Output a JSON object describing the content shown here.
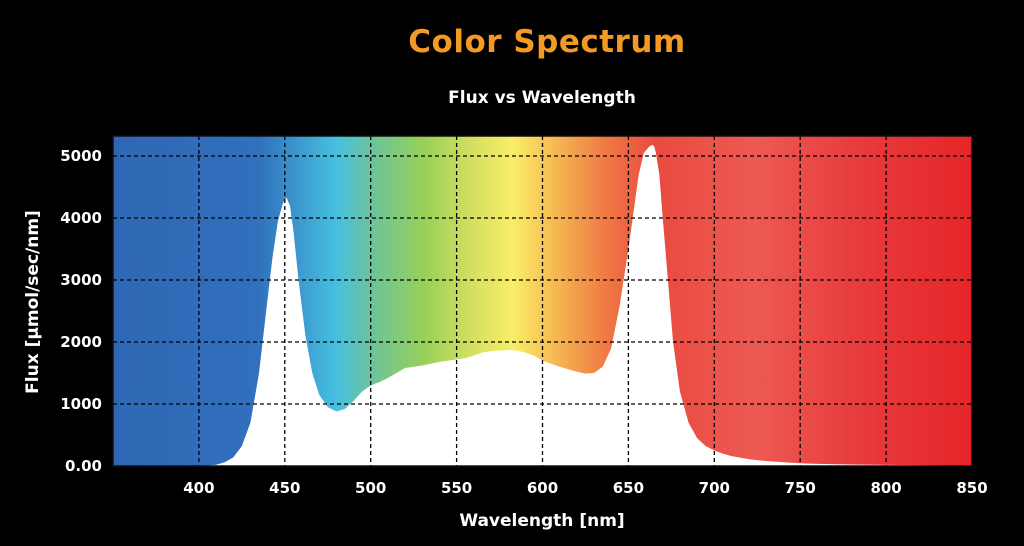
{
  "title": "Color Spectrum",
  "subtitle": "Flux vs Wavelength",
  "colors": {
    "title": "#f39a25",
    "spectrum_fill": "#ffffff",
    "grid": "#000000",
    "background": "#000000"
  },
  "chart_data": {
    "type": "area",
    "title": "Color Spectrum",
    "subtitle": "Flux vs Wavelength",
    "xlabel": "Wavelength [nm]",
    "ylabel": "Flux [μmol/sec/nm]",
    "xlim": [
      350,
      850
    ],
    "ylim": [
      0,
      5300
    ],
    "x_ticks": [
      400,
      450,
      500,
      550,
      600,
      650,
      700,
      750,
      800,
      850
    ],
    "x_tick_labels": [
      "400",
      "450",
      "500",
      "550",
      "600",
      "650",
      "700",
      "750",
      "800",
      "850"
    ],
    "y_ticks": [
      0,
      1000,
      2000,
      3000,
      4000,
      5000
    ],
    "y_tick_labels": [
      "0.00",
      "1000",
      "2000",
      "3000",
      "4000",
      "5000"
    ],
    "grid": true,
    "background": "visible light spectrum gradient",
    "series": [
      {
        "x": [
          350,
          400,
          405,
          410,
          415,
          420,
          425,
          430,
          435,
          440,
          443,
          446,
          449,
          451,
          453,
          455,
          458,
          462,
          466,
          470,
          475,
          480,
          485,
          490,
          495,
          500,
          505,
          510,
          515,
          520,
          525,
          530,
          535,
          540,
          545,
          550,
          555,
          560,
          565,
          570,
          575,
          580,
          585,
          590,
          595,
          600,
          605,
          610,
          615,
          620,
          625,
          630,
          635,
          640,
          645,
          650,
          653,
          656,
          659,
          662,
          664,
          665,
          666,
          668,
          670,
          673,
          676,
          680,
          685,
          690,
          695,
          700,
          705,
          710,
          720,
          730,
          740,
          750,
          760,
          780,
          800,
          820,
          850
        ],
        "y": [
          0,
          0,
          5,
          20,
          60,
          140,
          320,
          700,
          1500,
          2700,
          3400,
          3950,
          4250,
          4330,
          4200,
          3800,
          3000,
          2100,
          1500,
          1150,
          950,
          880,
          920,
          1050,
          1200,
          1300,
          1350,
          1420,
          1500,
          1580,
          1600,
          1620,
          1650,
          1680,
          1700,
          1720,
          1740,
          1780,
          1830,
          1850,
          1860,
          1870,
          1860,
          1830,
          1780,
          1700,
          1650,
          1600,
          1560,
          1520,
          1490,
          1500,
          1600,
          1900,
          2600,
          3500,
          4100,
          4700,
          5050,
          5150,
          5180,
          5160,
          5050,
          4700,
          4000,
          3000,
          2000,
          1200,
          700,
          450,
          320,
          250,
          200,
          160,
          110,
          80,
          60,
          45,
          35,
          25,
          18,
          12,
          5
        ]
      }
    ]
  }
}
